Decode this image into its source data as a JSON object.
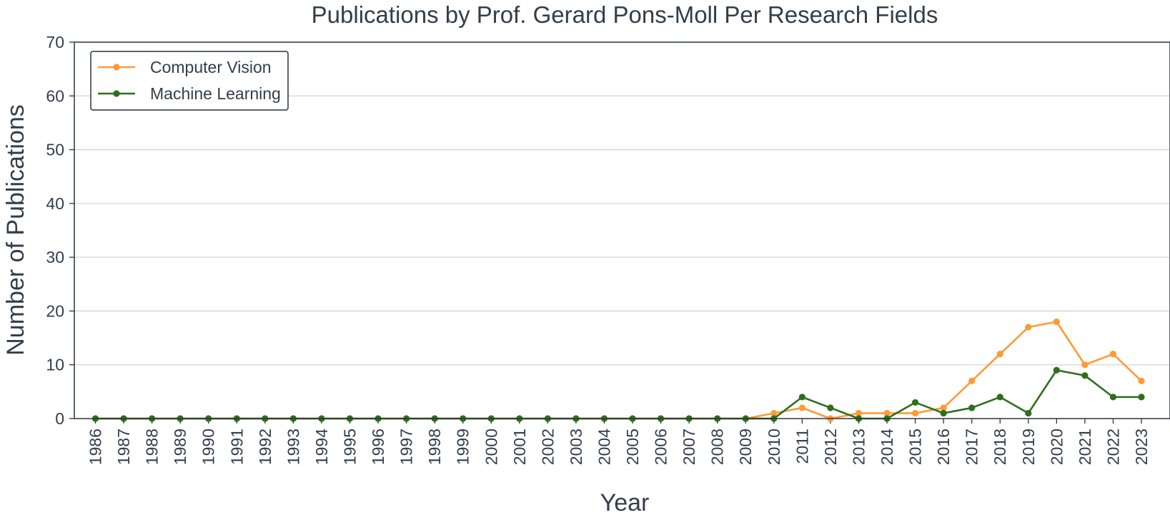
{
  "chart_data": {
    "type": "line",
    "title": "Publications by Prof. Gerard Pons-Moll Per Research Fields",
    "xlabel": "Year",
    "ylabel": "Number of Publications",
    "ylim": [
      0,
      70
    ],
    "yticks": [
      0,
      10,
      20,
      30,
      40,
      50,
      60,
      70
    ],
    "grid": "horizontal",
    "legend_position": "top-left",
    "x": [
      1986,
      1987,
      1988,
      1989,
      1990,
      1991,
      1992,
      1993,
      1994,
      1995,
      1996,
      1997,
      1998,
      1999,
      2000,
      2001,
      2002,
      2003,
      2004,
      2005,
      2006,
      2007,
      2008,
      2009,
      2010,
      2011,
      2012,
      2013,
      2014,
      2015,
      2016,
      2017,
      2018,
      2019,
      2020,
      2021,
      2022,
      2023
    ],
    "series": [
      {
        "name": "Computer Vision",
        "color": "#ff9a35",
        "values": [
          0,
          0,
          0,
          0,
          0,
          0,
          0,
          0,
          0,
          0,
          0,
          0,
          0,
          0,
          0,
          0,
          0,
          0,
          0,
          0,
          0,
          0,
          0,
          0,
          1,
          2,
          0,
          1,
          1,
          1,
          2,
          7,
          12,
          17,
          18,
          10,
          12,
          7
        ]
      },
      {
        "name": "Machine Learning",
        "color": "#2e6e1c",
        "values": [
          0,
          0,
          0,
          0,
          0,
          0,
          0,
          0,
          0,
          0,
          0,
          0,
          0,
          0,
          0,
          0,
          0,
          0,
          0,
          0,
          0,
          0,
          0,
          0,
          0,
          4,
          2,
          0,
          0,
          3,
          1,
          2,
          4,
          1,
          9,
          8,
          4,
          4
        ]
      }
    ]
  }
}
